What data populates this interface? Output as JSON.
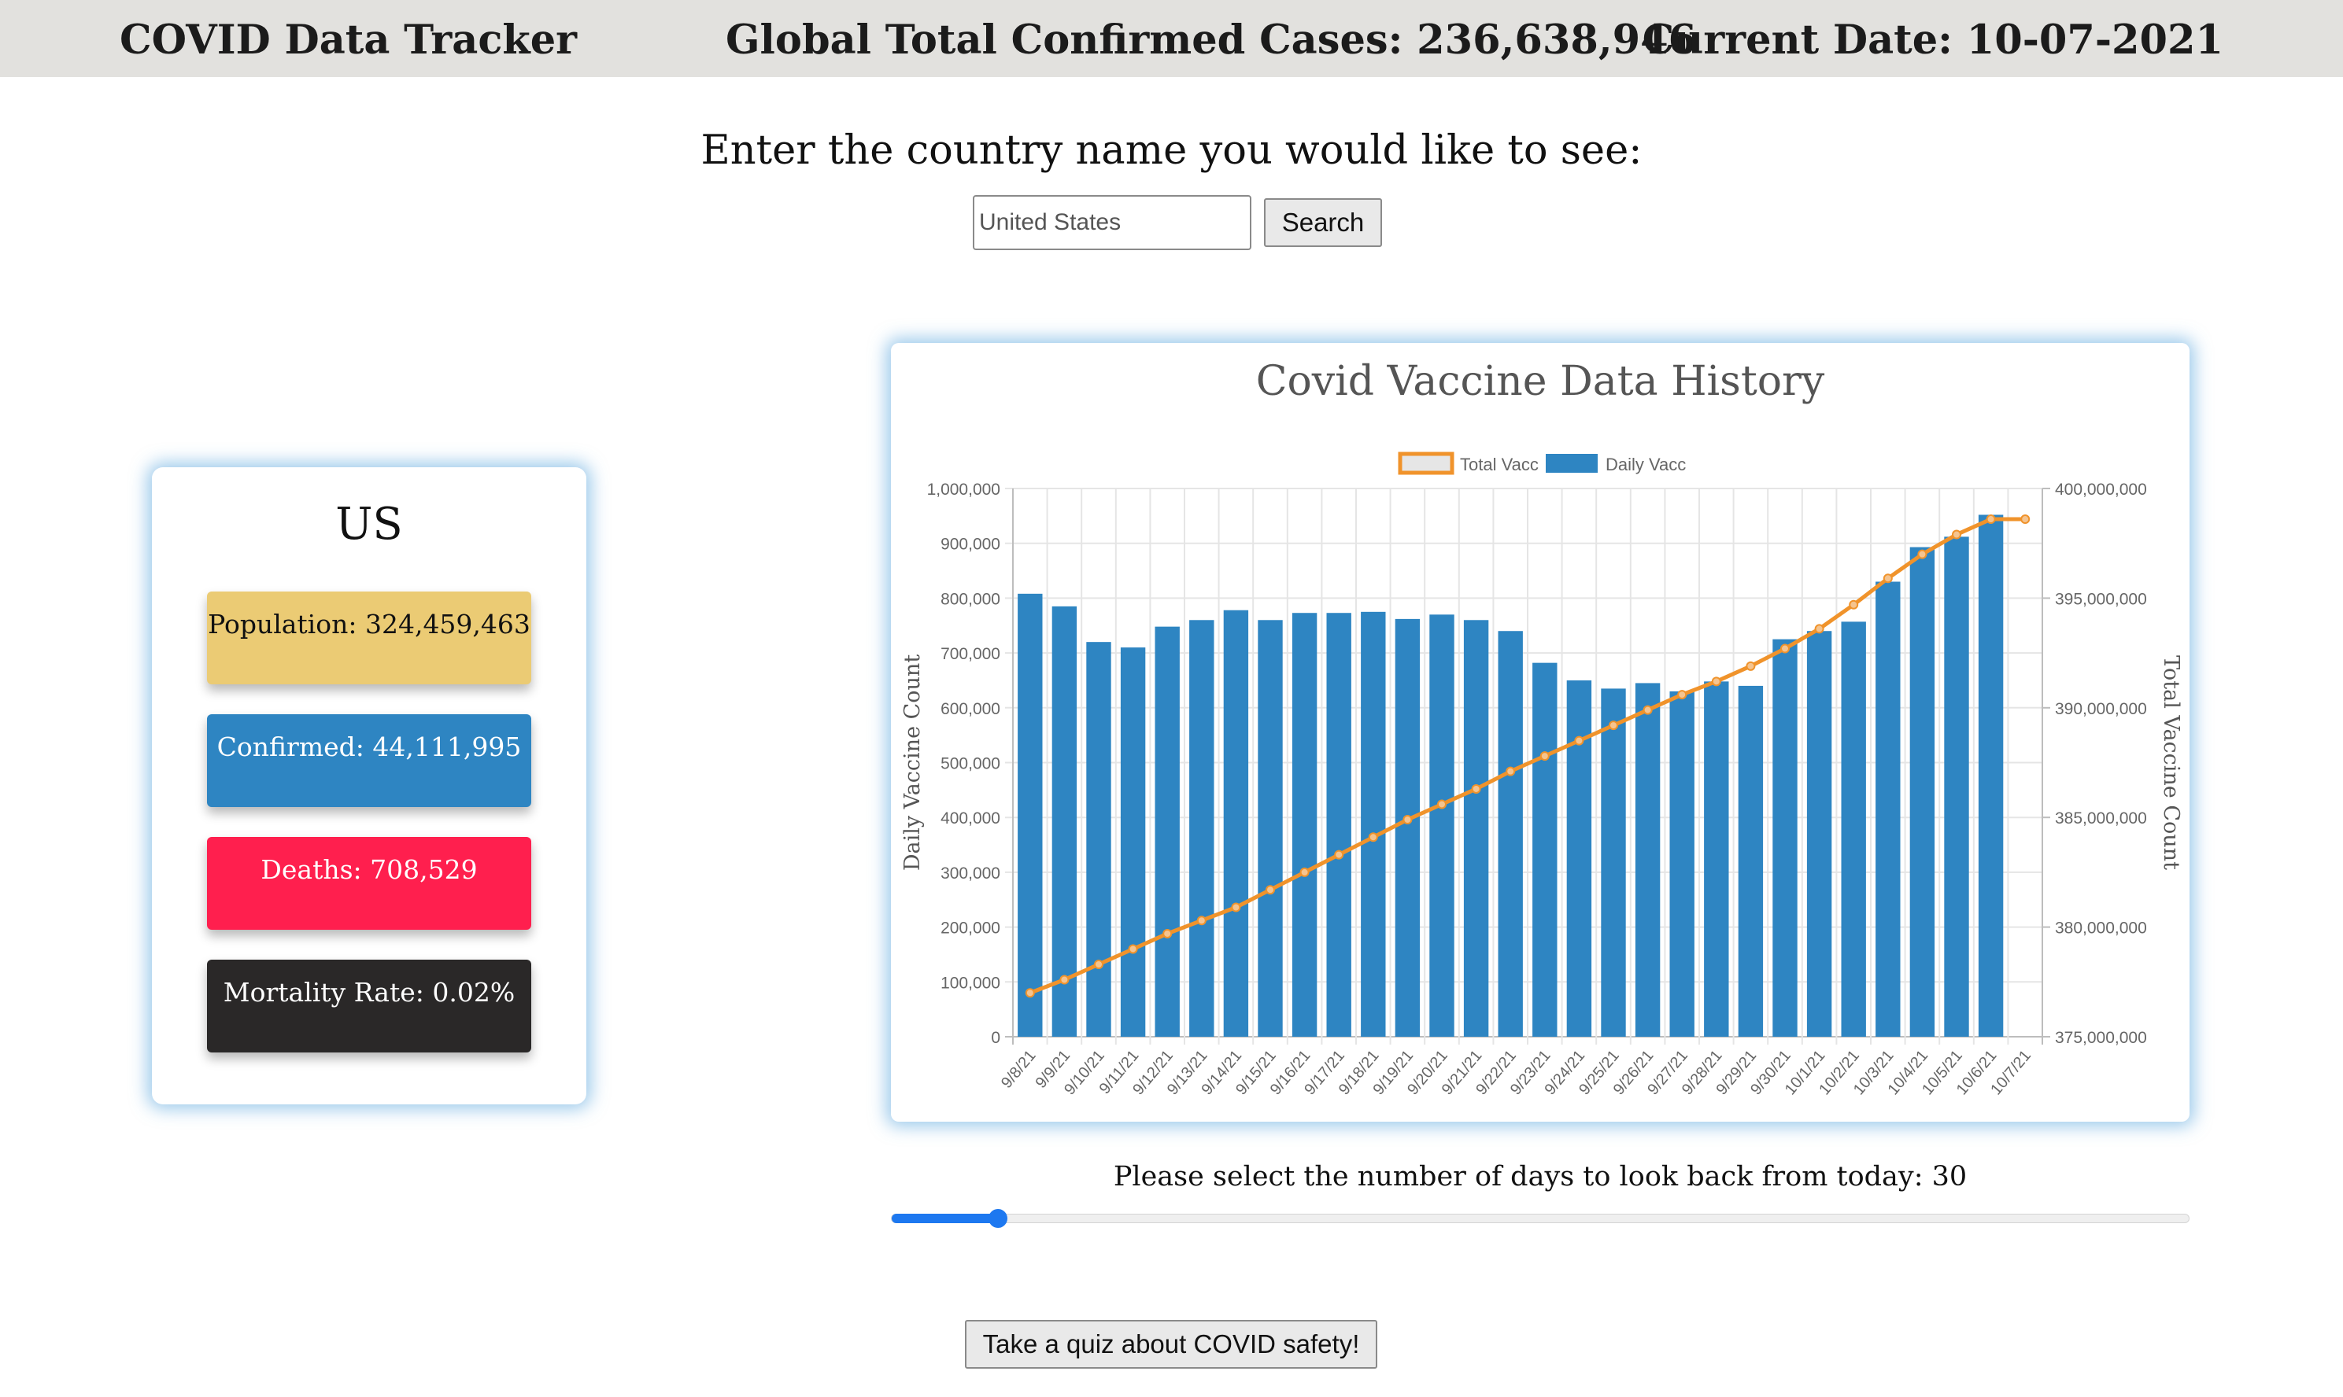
{
  "header": {
    "title": "COVID Data Tracker",
    "global_cases": "Global Total Confirmed Cases: 236,638,946",
    "current_date": "Current Date: 10-07-2021"
  },
  "search": {
    "prompt": "Enter the country name you would like to see:",
    "placeholder": "United States",
    "button_label": "Search"
  },
  "country": {
    "name": "US",
    "population": "Population: 324,459,463",
    "confirmed": "Confirmed: 44,111,995",
    "deaths": "Deaths: 708,529",
    "mortality": "Mortality Rate: 0.02%"
  },
  "colors": {
    "population": "#ebcb74",
    "confirmed": "#2e85c2",
    "deaths": "#ff1f4e",
    "mortality": "#2a2828",
    "bar": "#2e85c2",
    "line": "#f0932b"
  },
  "slider": {
    "label": "Please select the number of days to look back from today: 30",
    "fraction": 0.082
  },
  "quiz_button": "Take a quiz about COVID safety!",
  "chart_data": {
    "type": "bar",
    "title": "Covid Vaccine Data History",
    "legend_position": "top",
    "grid": true,
    "ylabel": "Daily Vaccine Count",
    "y2label": "Total Vaccine Count",
    "ylim": [
      0,
      1000000
    ],
    "y2lim": [
      375000000,
      400000000
    ],
    "yticks": [
      "0",
      "100,000",
      "200,000",
      "300,000",
      "400,000",
      "500,000",
      "600,000",
      "700,000",
      "800,000",
      "900,000",
      "1,000,000"
    ],
    "y2ticks": [
      "375,000,000",
      "380,000,000",
      "385,000,000",
      "390,000,000",
      "395,000,000",
      "400,000,000"
    ],
    "categories": [
      "9/8/21",
      "9/9/21",
      "9/10/21",
      "9/11/21",
      "9/12/21",
      "9/13/21",
      "9/14/21",
      "9/15/21",
      "9/16/21",
      "9/17/21",
      "9/18/21",
      "9/19/21",
      "9/20/21",
      "9/21/21",
      "9/22/21",
      "9/23/21",
      "9/24/21",
      "9/25/21",
      "9/26/21",
      "9/27/21",
      "9/28/21",
      "9/29/21",
      "9/30/21",
      "10/1/21",
      "10/2/21",
      "10/3/21",
      "10/4/21",
      "10/5/21",
      "10/6/21",
      "10/7/21"
    ],
    "series": [
      {
        "name": "Total Vacc",
        "kind": "line",
        "axis": "right",
        "values": [
          377000000,
          377600000,
          378300000,
          379000000,
          379700000,
          380300000,
          380900000,
          381700000,
          382500000,
          383300000,
          384100000,
          384900000,
          385600000,
          386300000,
          387100000,
          387800000,
          388500000,
          389200000,
          389900000,
          390600000,
          391200000,
          391900000,
          392700000,
          393600000,
          394700000,
          395900000,
          397000000,
          397900000,
          398600000,
          398600000
        ]
      },
      {
        "name": "Daily Vacc",
        "kind": "bar",
        "axis": "left",
        "values": [
          808000,
          785000,
          720000,
          710000,
          748000,
          760000,
          778000,
          760000,
          773000,
          773000,
          775000,
          762000,
          770000,
          760000,
          740000,
          682000,
          650000,
          635000,
          645000,
          630000,
          648000,
          640000,
          725000,
          740000,
          757000,
          830000,
          893000,
          912000,
          952000,
          null
        ]
      }
    ]
  }
}
